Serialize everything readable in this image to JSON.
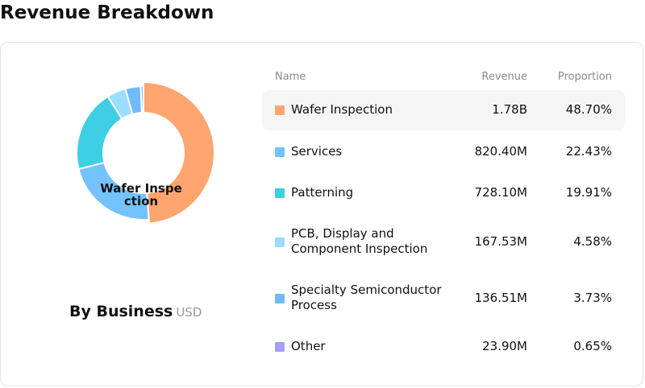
{
  "header": {
    "title": "Revenue Breakdown"
  },
  "chart": {
    "center_label": "Wafer Inspection",
    "label": "By Business",
    "unit": "USD"
  },
  "table": {
    "columns": {
      "name": "Name",
      "revenue": "Revenue",
      "proportion": "Proportion"
    },
    "rows": [
      {
        "name": "Wafer Inspection",
        "revenue": "1.78B",
        "proportion": "48.70%",
        "color": "#ffa570"
      },
      {
        "name": "Services",
        "revenue": "820.40M",
        "proportion": "22.43%",
        "color": "#74c2ff"
      },
      {
        "name": "Patterning",
        "revenue": "728.10M",
        "proportion": "19.91%",
        "color": "#3fcfe5"
      },
      {
        "name": "PCB, Display and Component Inspection",
        "revenue": "167.53M",
        "proportion": "4.58%",
        "color": "#9bdcff"
      },
      {
        "name": "Specialty Semiconductor Process",
        "revenue": "136.51M",
        "proportion": "3.73%",
        "color": "#6fbaf7"
      },
      {
        "name": "Other",
        "revenue": "23.90M",
        "proportion": "0.65%",
        "color": "#a3a0f5"
      }
    ]
  },
  "chart_data": {
    "type": "pie",
    "title": "By Business",
    "unit": "USD",
    "categories": [
      "Wafer Inspection",
      "Services",
      "Patterning",
      "PCB, Display and Component Inspection",
      "Specialty Semiconductor Process",
      "Other"
    ],
    "values": [
      48.7,
      22.43,
      19.91,
      4.58,
      3.73,
      0.65
    ],
    "colors": [
      "#ffa570",
      "#74c2ff",
      "#3fcfe5",
      "#9bdcff",
      "#6fbaf7",
      "#a3a0f5"
    ],
    "highlighted": "Wafer Inspection"
  }
}
